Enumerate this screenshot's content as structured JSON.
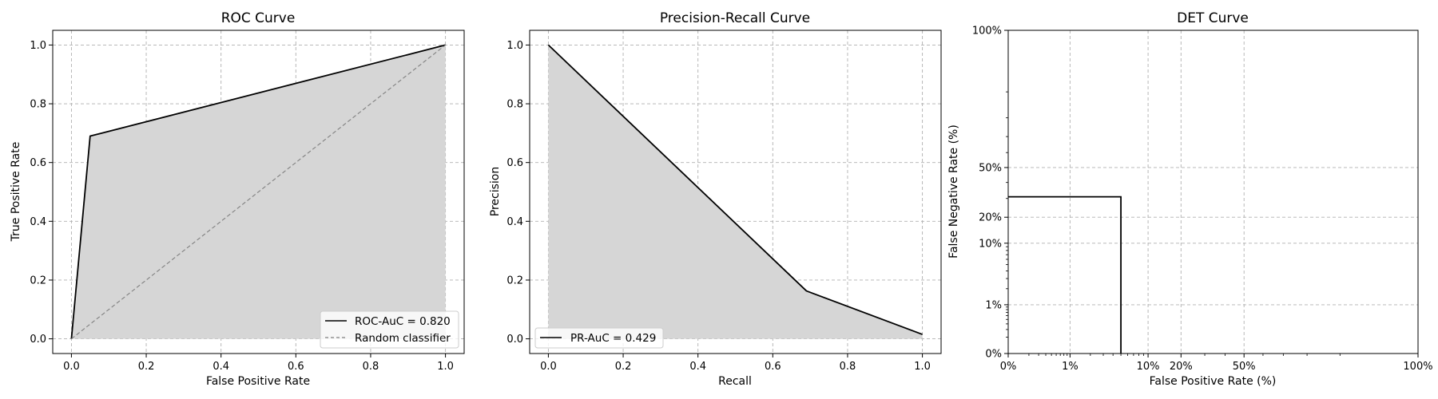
{
  "chart_data": [
    {
      "id": "roc",
      "type": "line",
      "title": "ROC Curve",
      "xlabel": "False Positive Rate",
      "ylabel": "True Positive Rate",
      "xlim": [
        -0.05,
        1.05
      ],
      "ylim": [
        -0.05,
        1.05
      ],
      "xticks": [
        0.0,
        0.2,
        0.4,
        0.6,
        0.8,
        1.0
      ],
      "yticks": [
        0.0,
        0.2,
        0.4,
        0.6,
        0.8,
        1.0
      ],
      "xtick_labels": [
        "0.0",
        "0.2",
        "0.4",
        "0.6",
        "0.8",
        "1.0"
      ],
      "ytick_labels": [
        "0.0",
        "0.2",
        "0.4",
        "0.6",
        "0.8",
        "1.0"
      ],
      "grid": true,
      "legend_position": "lower-right",
      "series": [
        {
          "name": "ROC-AuC = 0.820",
          "style": "solid",
          "color": "#000000",
          "fill": true,
          "x": [
            0.0,
            0.05,
            1.0
          ],
          "y": [
            0.0,
            0.69,
            1.0
          ]
        },
        {
          "name": "Random classifier",
          "style": "dashed",
          "color": "#808080",
          "fill": false,
          "x": [
            0.0,
            1.0
          ],
          "y": [
            0.0,
            1.0
          ]
        }
      ]
    },
    {
      "id": "pr",
      "type": "line",
      "title": "Precision-Recall Curve",
      "xlabel": "Recall",
      "ylabel": "Precision",
      "xlim": [
        -0.05,
        1.05
      ],
      "ylim": [
        -0.05,
        1.05
      ],
      "xticks": [
        0.0,
        0.2,
        0.4,
        0.6,
        0.8,
        1.0
      ],
      "yticks": [
        0.0,
        0.2,
        0.4,
        0.6,
        0.8,
        1.0
      ],
      "xtick_labels": [
        "0.0",
        "0.2",
        "0.4",
        "0.6",
        "0.8",
        "1.0"
      ],
      "ytick_labels": [
        "0.0",
        "0.2",
        "0.4",
        "0.6",
        "0.8",
        "1.0"
      ],
      "grid": true,
      "legend_position": "lower-left",
      "series": [
        {
          "name": "PR-AuC = 0.429",
          "style": "solid",
          "color": "#000000",
          "fill": true,
          "x": [
            0.0,
            0.69,
            1.0
          ],
          "y": [
            1.0,
            0.163,
            0.015
          ]
        }
      ]
    },
    {
      "id": "det",
      "type": "line",
      "title": "DET Curve",
      "xlabel": "False Positive Rate (%)",
      "ylabel": "False Negative Rate (%)",
      "scale": "normal-deviate (probit)",
      "xlim": [
        0.0,
        100.0
      ],
      "ylim": [
        0.0,
        100.0
      ],
      "xticks": [
        0,
        1,
        10,
        20,
        50,
        100
      ],
      "yticks": [
        0,
        1,
        10,
        20,
        50,
        100
      ],
      "xtick_labels": [
        "0%",
        "1%",
        "10%",
        "20%",
        "50%",
        "100%"
      ],
      "ytick_labels": [
        "0%",
        "1%",
        "10%",
        "20%",
        "50%",
        "100%"
      ],
      "grid": true,
      "series": [
        {
          "style": "solid",
          "color": "#000000",
          "fill": false,
          "x": [
            0,
            5,
            5
          ],
          "y": [
            31,
            31,
            0
          ]
        }
      ]
    }
  ],
  "colors": {
    "fill": "#d6d6d6",
    "grid": "#b0b0b0",
    "line": "#000000",
    "random": "#808080"
  }
}
